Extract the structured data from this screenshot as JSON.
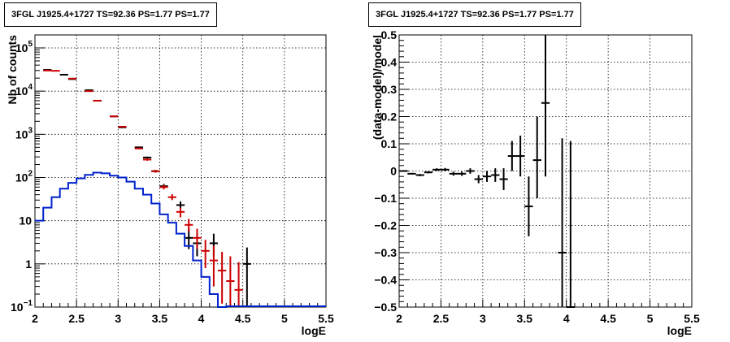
{
  "panels": {
    "left": {
      "title": "3FGL J1925.4+1727 TS=92.36 PS=1.77 PS=1.77"
    },
    "right": {
      "title": "3FGL J1925.4+1727 TS=92.36 PS=1.77 PS=1.77"
    }
  },
  "colors": {
    "data": "#000000",
    "model_total": "#cc0000",
    "model_source": "#0022cc"
  },
  "chart_data": [
    {
      "type": "line",
      "title": "3FGL J1925.4+1727 TS=92.36 PS=1.77 PS=1.77",
      "xlabel": "logE",
      "ylabel": "Nb of counts",
      "xlim": [
        2,
        5.5
      ],
      "ylim": [
        0.1,
        200000
      ],
      "yscale": "log",
      "grid": true,
      "x_ticks": [
        "2",
        "2.5",
        "3",
        "3.5",
        "4",
        "4.5",
        "5",
        "5.5"
      ],
      "y_ticks": [
        {
          "value": 0.1,
          "base": "10",
          "exp": "−1"
        },
        {
          "value": 1,
          "base": "1",
          "exp": ""
        },
        {
          "value": 10,
          "base": "10",
          "exp": ""
        },
        {
          "value": 100,
          "base": "10",
          "exp": "2"
        },
        {
          "value": 1000,
          "base": "10",
          "exp": "3"
        },
        {
          "value": 10000,
          "base": "10",
          "exp": "4"
        },
        {
          "value": 100000,
          "base": "10",
          "exp": "5"
        }
      ],
      "series": [
        {
          "role": "data",
          "style": "errorbar",
          "color": "#000000",
          "points": [
            {
              "x": 2.15,
              "y": 31000,
              "lo": 30800,
              "hi": 31200
            },
            {
              "x": 2.35,
              "y": 24000,
              "lo": 23800,
              "hi": 24200
            },
            {
              "x": 2.45,
              "y": 19000,
              "lo": 18800,
              "hi": 19200
            },
            {
              "x": 2.65,
              "y": 10500,
              "lo": 10350,
              "hi": 10650
            },
            {
              "x": 2.75,
              "y": 6000,
              "lo": 5900,
              "hi": 6100
            },
            {
              "x": 2.95,
              "y": 2600,
              "lo": 2550,
              "hi": 2650
            },
            {
              "x": 3.05,
              "y": 1450,
              "lo": 1410,
              "hi": 1490
            },
            {
              "x": 3.25,
              "y": 500,
              "lo": 480,
              "hi": 520
            },
            {
              "x": 3.35,
              "y": 290,
              "lo": 275,
              "hi": 305
            },
            {
              "x": 3.45,
              "y": 140,
              "lo": 130,
              "hi": 150
            },
            {
              "x": 3.55,
              "y": 63,
              "lo": 56,
              "hi": 71
            },
            {
              "x": 3.75,
              "y": 23,
              "lo": 18,
              "hi": 28
            },
            {
              "x": 3.85,
              "y": 4,
              "lo": 2.2,
              "hi": 6.5
            },
            {
              "x": 3.95,
              "y": 3,
              "lo": 1.5,
              "hi": 5
            },
            {
              "x": 4.15,
              "y": 3,
              "lo": 1.5,
              "hi": 5
            },
            {
              "x": 4.55,
              "y": 1,
              "lo": 0.1,
              "hi": 2.4
            }
          ]
        },
        {
          "role": "model_total",
          "style": "errorbar",
          "color": "#cc0000",
          "points": [
            {
              "x": 2.15,
              "y": 30000,
              "lo": 29800,
              "hi": 30200
            },
            {
              "x": 2.25,
              "y": 29500,
              "lo": 29300,
              "hi": 29700
            },
            {
              "x": 2.45,
              "y": 19500,
              "lo": 19300,
              "hi": 19700
            },
            {
              "x": 2.65,
              "y": 10000,
              "lo": 9850,
              "hi": 10150
            },
            {
              "x": 2.75,
              "y": 6000,
              "lo": 5900,
              "hi": 6100
            },
            {
              "x": 2.95,
              "y": 2600,
              "lo": 2550,
              "hi": 2650
            },
            {
              "x": 3.05,
              "y": 1500,
              "lo": 1460,
              "hi": 1540
            },
            {
              "x": 3.25,
              "y": 470,
              "lo": 450,
              "hi": 490
            },
            {
              "x": 3.35,
              "y": 260,
              "lo": 245,
              "hi": 275
            },
            {
              "x": 3.45,
              "y": 140,
              "lo": 130,
              "hi": 150
            },
            {
              "x": 3.55,
              "y": 60,
              "lo": 53,
              "hi": 68
            },
            {
              "x": 3.65,
              "y": 35,
              "lo": 30,
              "hi": 41
            },
            {
              "x": 3.75,
              "y": 16,
              "lo": 12,
              "hi": 20
            },
            {
              "x": 3.85,
              "y": 8,
              "lo": 5.5,
              "hi": 11
            },
            {
              "x": 3.95,
              "y": 4,
              "lo": 2.2,
              "hi": 6.5
            },
            {
              "x": 4.05,
              "y": 2,
              "lo": 0.8,
              "hi": 3.6
            },
            {
              "x": 4.15,
              "y": 1.2,
              "lo": 0.3,
              "hi": 2.6
            },
            {
              "x": 4.25,
              "y": 0.7,
              "lo": 0.12,
              "hi": 1.9
            },
            {
              "x": 4.35,
              "y": 0.4,
              "lo": 0.1,
              "hi": 1.5
            },
            {
              "x": 4.45,
              "y": 0.25,
              "lo": 0.1,
              "hi": 1.1
            }
          ]
        },
        {
          "role": "model_source",
          "style": "step",
          "color": "#0022cc",
          "bin_width": 0.1,
          "bins": [
            {
              "x": 2.05,
              "y": 10
            },
            {
              "x": 2.15,
              "y": 20
            },
            {
              "x": 2.25,
              "y": 35
            },
            {
              "x": 2.35,
              "y": 55
            },
            {
              "x": 2.45,
              "y": 75
            },
            {
              "x": 2.55,
              "y": 95
            },
            {
              "x": 2.65,
              "y": 115
            },
            {
              "x": 2.75,
              "y": 130
            },
            {
              "x": 2.85,
              "y": 125
            },
            {
              "x": 2.95,
              "y": 110
            },
            {
              "x": 3.05,
              "y": 100
            },
            {
              "x": 3.15,
              "y": 80
            },
            {
              "x": 3.25,
              "y": 55
            },
            {
              "x": 3.35,
              "y": 40
            },
            {
              "x": 3.45,
              "y": 25
            },
            {
              "x": 3.55,
              "y": 14
            },
            {
              "x": 3.65,
              "y": 9
            },
            {
              "x": 3.75,
              "y": 5
            },
            {
              "x": 3.85,
              "y": 2.6
            },
            {
              "x": 3.95,
              "y": 1.2
            },
            {
              "x": 4.05,
              "y": 0.5
            },
            {
              "x": 4.15,
              "y": 0.2
            },
            {
              "x": 4.25,
              "y": 0.1
            }
          ],
          "floor_to": 5.5
        }
      ]
    },
    {
      "type": "scatter",
      "title": "3FGL J1925.4+1727 TS=92.36 PS=1.77 PS=1.77",
      "xlabel": "logE",
      "ylabel": "(data-model)/model",
      "xlim": [
        2,
        5.5
      ],
      "ylim": [
        -0.5,
        0.5
      ],
      "grid": true,
      "x_ticks": [
        "2",
        "2.5",
        "3",
        "3.5",
        "4",
        "4.5",
        "5",
        "5.5"
      ],
      "y_ticks": [
        "−0.5",
        "−0.4",
        "−0.3",
        "−0.2",
        "−0.1",
        "0",
        "0.1",
        "0.2",
        "0.3",
        "0.4",
        "0.5"
      ],
      "series": [
        {
          "role": "residuals",
          "style": "errorbar",
          "color": "#000000",
          "points": [
            {
              "x": 2.05,
              "y": 0.0,
              "lo": -0.003,
              "hi": 0.003
            },
            {
              "x": 2.15,
              "y": -0.01,
              "lo": -0.013,
              "hi": -0.007
            },
            {
              "x": 2.25,
              "y": -0.015,
              "lo": -0.019,
              "hi": -0.011
            },
            {
              "x": 2.35,
              "y": -0.005,
              "lo": -0.009,
              "hi": -0.001
            },
            {
              "x": 2.45,
              "y": 0.005,
              "lo": 0.0,
              "hi": 0.01
            },
            {
              "x": 2.55,
              "y": 0.005,
              "lo": -0.001,
              "hi": 0.011
            },
            {
              "x": 2.65,
              "y": -0.01,
              "lo": -0.017,
              "hi": -0.003
            },
            {
              "x": 2.75,
              "y": -0.01,
              "lo": -0.018,
              "hi": -0.002
            },
            {
              "x": 2.85,
              "y": 0.0,
              "lo": -0.01,
              "hi": 0.01
            },
            {
              "x": 2.95,
              "y": -0.03,
              "lo": -0.045,
              "hi": -0.015
            },
            {
              "x": 3.05,
              "y": -0.02,
              "lo": -0.04,
              "hi": 0.0
            },
            {
              "x": 3.15,
              "y": -0.015,
              "lo": -0.04,
              "hi": 0.01
            },
            {
              "x": 3.25,
              "y": -0.03,
              "lo": -0.07,
              "hi": 0.01
            },
            {
              "x": 3.35,
              "y": 0.055,
              "lo": -0.0,
              "hi": 0.11
            },
            {
              "x": 3.45,
              "y": 0.055,
              "lo": -0.02,
              "hi": 0.13
            },
            {
              "x": 3.55,
              "y": -0.13,
              "lo": -0.24,
              "hi": -0.02
            },
            {
              "x": 3.65,
              "y": 0.04,
              "lo": -0.1,
              "hi": 0.2
            },
            {
              "x": 3.75,
              "y": 0.25,
              "lo": -0.02,
              "hi": 0.5
            },
            {
              "x": 3.95,
              "y": -0.3,
              "lo": -0.5,
              "hi": 0.12
            },
            {
              "x": 4.05,
              "y": -0.5,
              "lo": -0.5,
              "hi": 0.11
            }
          ]
        }
      ]
    }
  ]
}
